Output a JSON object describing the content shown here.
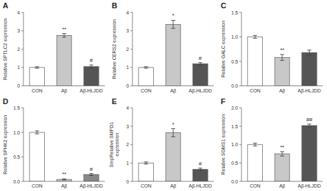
{
  "chart_data": [
    {
      "type": "bar",
      "title": "A",
      "y_label": "Relative SPTLC2 expression",
      "categories": [
        "CON",
        "Aβ",
        "Aβ-HLJDD"
      ],
      "values": [
        1.0,
        2.75,
        1.05
      ],
      "errors": [
        0.04,
        0.1,
        0.09
      ],
      "colors": [
        "#ffffff",
        "#c8c8c8",
        "#555555"
      ],
      "annotations": [
        null,
        "**",
        "#"
      ],
      "ylim": [
        0,
        4
      ],
      "yticks": [
        0,
        1,
        2,
        3,
        4
      ]
    },
    {
      "type": "bar",
      "title": "B",
      "y_label": "Relative CERS2 expression",
      "categories": [
        "CON",
        "Aβ",
        "Aβ-HLJDD"
      ],
      "values": [
        1.0,
        3.35,
        1.2
      ],
      "errors": [
        0.04,
        0.22,
        0.07
      ],
      "colors": [
        "#ffffff",
        "#c8c8c8",
        "#555555"
      ],
      "annotations": [
        null,
        "*",
        "#"
      ],
      "ylim": [
        0,
        4
      ],
      "yticks": [
        0,
        1,
        2,
        3,
        4
      ]
    },
    {
      "type": "bar",
      "title": "C",
      "y_label": "Relative GALC expression",
      "categories": [
        "CON",
        "Aβ",
        "Aβ-HLJDD"
      ],
      "values": [
        1.0,
        0.58,
        0.68
      ],
      "errors": [
        0.03,
        0.06,
        0.05
      ],
      "colors": [
        "#ffffff",
        "#c8c8c8",
        "#555555"
      ],
      "annotations": [
        null,
        "**",
        null
      ],
      "ylim": [
        0.0,
        1.5
      ],
      "yticks": [
        {
          "value": 0.0,
          "label": "0.0"
        },
        0.5,
        {
          "value": 1.0,
          "label": "1.0"
        },
        1.5
      ]
    },
    {
      "type": "bar",
      "title": "D",
      "y_label": "Relative SPHK2 expression",
      "categories": [
        "CON",
        "Aβ",
        "Aβ-HLJDD"
      ],
      "values": [
        1.0,
        0.04,
        0.14
      ],
      "errors": [
        0.03,
        0.01,
        0.02
      ],
      "colors": [
        "#ffffff",
        "#c8c8c8",
        "#888888"
      ],
      "annotations": [
        null,
        "**",
        "#"
      ],
      "ylim": [
        0.0,
        1.5
      ],
      "yticks": [
        {
          "value": 0.0,
          "label": "0.0"
        },
        0.5,
        {
          "value": 1.0,
          "label": "1.0"
        },
        1.5
      ]
    },
    {
      "type": "bar",
      "title": "E",
      "y_label": "SmpRelative SMPD1\nexpression",
      "categories": [
        "CON",
        "Aβ",
        "Aβ-HLJDD"
      ],
      "values": [
        1.0,
        2.65,
        0.65
      ],
      "errors": [
        0.06,
        0.22,
        0.07
      ],
      "colors": [
        "#ffffff",
        "#c8c8c8",
        "#555555"
      ],
      "annotations": [
        null,
        "*",
        "#"
      ],
      "ylim": [
        0,
        4
      ],
      "yticks": [
        0,
        1,
        2,
        3,
        4
      ]
    },
    {
      "type": "bar",
      "title": "F",
      "y_label": "Relative SGMS1 expression",
      "categories": [
        "CON",
        "Aβ",
        "Aβ-HLJDD"
      ],
      "values": [
        1.0,
        0.75,
        1.52
      ],
      "errors": [
        0.04,
        0.06,
        0.04
      ],
      "colors": [
        "#ffffff",
        "#c8c8c8",
        "#555555"
      ],
      "annotations": [
        null,
        "**",
        "##"
      ],
      "ylim": [
        0.0,
        2.0
      ],
      "yticks": [
        {
          "value": 0.0,
          "label": "0.0"
        },
        0.5,
        {
          "value": 1.0,
          "label": "1.0"
        },
        1.5,
        {
          "value": 2.0,
          "label": "2.0"
        }
      ]
    }
  ]
}
